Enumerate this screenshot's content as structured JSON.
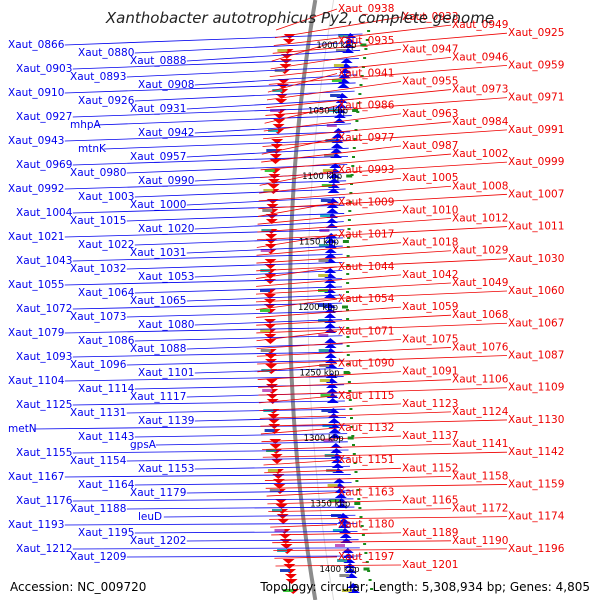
{
  "header": {
    "title": "Xanthobacter autotrophicus Py2, complete genome"
  },
  "footer": {
    "accession": "Accession: NC_009720",
    "summary": "Topology: circular; Length: 5,308,934 bp; Genes: 4,805"
  },
  "colors": {
    "minus_strand": "#0000ee",
    "plus_strand": "#ee0000",
    "backbone": "#8c8c8c",
    "tick": "#1a8a1a"
  },
  "ticks": [
    "1000 kbp",
    "1050 kbp",
    "1100 kbp",
    "1150 kbp",
    "1200 kbp",
    "1250 kbp",
    "1300 kbp",
    "1350 kbp",
    "1400 kbp"
  ],
  "left_labels": [
    "Xaut_0866",
    "Xaut_0880",
    "Xaut_0888",
    "Xaut_0903",
    "Xaut_0893",
    "Xaut_0908",
    "Xaut_0910",
    "Xaut_0926",
    "Xaut_0931",
    "Xaut_0927",
    "mhpA",
    "Xaut_0942",
    "Xaut_0943",
    "mtnK",
    "Xaut_0957",
    "Xaut_0969",
    "Xaut_0980",
    "Xaut_0990",
    "Xaut_0992",
    "Xaut_1003",
    "Xaut_1000",
    "Xaut_1004",
    "Xaut_1015",
    "Xaut_1020",
    "Xaut_1021",
    "Xaut_1022",
    "Xaut_1031",
    "Xaut_1043",
    "Xaut_1032",
    "Xaut_1053",
    "Xaut_1055",
    "Xaut_1064",
    "Xaut_1065",
    "Xaut_1072",
    "Xaut_1073",
    "Xaut_1080",
    "Xaut_1079",
    "Xaut_1086",
    "Xaut_1088",
    "Xaut_1093",
    "Xaut_1096",
    "Xaut_1101",
    "Xaut_1104",
    "Xaut_1114",
    "Xaut_1117",
    "Xaut_1125",
    "Xaut_1131",
    "Xaut_1139",
    "metN",
    "Xaut_1143",
    "gpsA",
    "Xaut_1155",
    "Xaut_1154",
    "Xaut_1153",
    "Xaut_1167",
    "Xaut_1164",
    "Xaut_1179",
    "Xaut_1176",
    "Xaut_1188",
    "leuD",
    "Xaut_1193",
    "Xaut_1195",
    "Xaut_1202",
    "Xaut_1212",
    "Xaut_1209"
  ],
  "right_labels": [
    "Xaut_0938",
    "Xaut_0933",
    "Xaut_0949",
    "Xaut_0925",
    "Xaut_0935",
    "Xaut_0947",
    "Xaut_0946",
    "Xaut_0959",
    "Xaut_0941",
    "Xaut_0955",
    "Xaut_0973",
    "Xaut_0971",
    "Xaut_0986",
    "Xaut_0963",
    "Xaut_0984",
    "Xaut_0991",
    "Xaut_0977",
    "Xaut_0987",
    "Xaut_1002",
    "Xaut_0999",
    "Xaut_0993",
    "Xaut_1005",
    "Xaut_1008",
    "Xaut_1007",
    "Xaut_1009",
    "Xaut_1010",
    "Xaut_1012",
    "Xaut_1011",
    "Xaut_1017",
    "Xaut_1018",
    "Xaut_1029",
    "Xaut_1030",
    "Xaut_1044",
    "Xaut_1042",
    "Xaut_1049",
    "Xaut_1060",
    "Xaut_1054",
    "Xaut_1059",
    "Xaut_1068",
    "Xaut_1067",
    "Xaut_1071",
    "Xaut_1075",
    "Xaut_1076",
    "Xaut_1087",
    "Xaut_1090",
    "Xaut_1091",
    "Xaut_1106",
    "Xaut_1109",
    "Xaut_1115",
    "Xaut_1123",
    "Xaut_1124",
    "Xaut_1130",
    "Xaut_1132",
    "Xaut_1137",
    "Xaut_1141",
    "Xaut_1142",
    "Xaut_1151",
    "Xaut_1152",
    "Xaut_1158",
    "Xaut_1159",
    "Xaut_1163",
    "Xaut_1165",
    "Xaut_1172",
    "Xaut_1174",
    "Xaut_1180",
    "Xaut_1189",
    "Xaut_1190",
    "Xaut_1196",
    "Xaut_1197",
    "Xaut_1201"
  ]
}
